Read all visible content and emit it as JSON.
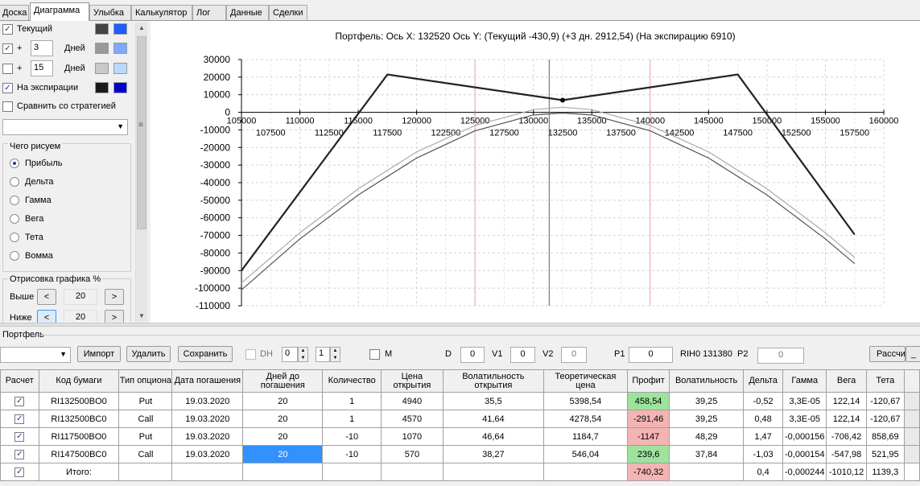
{
  "tabs": [
    {
      "label": "Доска",
      "active": false
    },
    {
      "label": "Диаграмма",
      "active": true
    },
    {
      "label": "Улыбка",
      "active": false
    },
    {
      "label": "Калькулятор",
      "active": false
    },
    {
      "label": "Лог",
      "active": false
    },
    {
      "label": "Данные",
      "active": false
    },
    {
      "label": "Сделки",
      "active": false
    }
  ],
  "left": {
    "current_label": "Текущий",
    "plus1": "+",
    "days1_value": "3",
    "days1_label": "Дней",
    "plus2": "+",
    "days2_value": "15",
    "days2_label": "Дней",
    "expiry_label": "На экспирации",
    "compare_label": "Сравнить со стратегией",
    "draw_group": "Чего рисуем",
    "radios": [
      "Прибыль",
      "Дельта",
      "Гамма",
      "Вега",
      "Тета",
      "Вомма"
    ],
    "draw_pct_group": "Отрисовка графика %",
    "above_label": "Выше",
    "above_value": "20",
    "below_label": "Ниже",
    "below_value": "20",
    "btn_left": "<",
    "btn_right": ">",
    "colors": {
      "current": [
        "#444444",
        "#1e5cff"
      ],
      "days1": [
        "#999999",
        "#7fa8ff"
      ],
      "days2": [
        "#c8c8c8",
        "#b8daff"
      ],
      "expiry": [
        "#1a1a1a",
        "#0000cc"
      ]
    }
  },
  "chart_data": {
    "type": "line",
    "title": "Портфель: Ось X: 132520 Ось Y:  (Текущий -430,9)  (+3 дн. 2912,54)  (На экспирацию 6910)",
    "xlim": [
      105000,
      160000
    ],
    "ylim": [
      -110000,
      30000
    ],
    "x_ticks_upper": [
      105000,
      110000,
      115000,
      120000,
      125000,
      130000,
      135000,
      140000,
      145000,
      150000,
      155000,
      160000
    ],
    "x_ticks_lower": [
      107500,
      112500,
      117500,
      122500,
      127500,
      132500,
      137500,
      142500,
      147500,
      152500,
      157500
    ],
    "y_ticks": [
      30000,
      20000,
      10000,
      0,
      -10000,
      -20000,
      -30000,
      -40000,
      -50000,
      -60000,
      -70000,
      -80000,
      -90000,
      -100000,
      -110000
    ],
    "vlines": [
      {
        "x": 125000,
        "color": "#f0a0b0"
      },
      {
        "x": 131350,
        "color": "#556080"
      },
      {
        "x": 140000,
        "color": "#f0a0b0"
      }
    ],
    "series": [
      {
        "style": "expiry",
        "color": "#222222",
        "points": [
          [
            105000,
            -90000
          ],
          [
            117500,
            21500
          ],
          [
            132500,
            6910
          ],
          [
            147500,
            21500
          ],
          [
            157500,
            -69500
          ]
        ]
      },
      {
        "style": "current",
        "color": "#555555",
        "points": [
          [
            105000,
            -101000
          ],
          [
            110000,
            -72000
          ],
          [
            115000,
            -47000
          ],
          [
            120000,
            -26000
          ],
          [
            125000,
            -10500
          ],
          [
            130000,
            -1500
          ],
          [
            132500,
            -431
          ],
          [
            135000,
            -1500
          ],
          [
            140000,
            -10500
          ],
          [
            145000,
            -26000
          ],
          [
            150000,
            -47000
          ],
          [
            155000,
            -72000
          ],
          [
            157500,
            -86000
          ]
        ]
      },
      {
        "style": "plus3",
        "color": "#a8a8a8",
        "points": [
          [
            105000,
            -97000
          ],
          [
            110000,
            -68500
          ],
          [
            115000,
            -43500
          ],
          [
            120000,
            -22500
          ],
          [
            125000,
            -7500
          ],
          [
            130000,
            1500
          ],
          [
            132500,
            2913
          ],
          [
            135000,
            1500
          ],
          [
            140000,
            -7500
          ],
          [
            145000,
            -22500
          ],
          [
            150000,
            -43500
          ],
          [
            155000,
            -68500
          ],
          [
            157500,
            -82500
          ]
        ]
      }
    ],
    "marker": {
      "x": 132500,
      "y": 6910
    }
  },
  "portfolio": {
    "label": "Портфель",
    "import": "Импорт",
    "delete": "Удалить",
    "save": "Сохранить",
    "dh_label": "DH",
    "dh_value1": "0",
    "dh_value2": "1",
    "m_label": "M",
    "d_label": "D",
    "d_value": "0",
    "v1_label": "V1",
    "v1_value": "0",
    "v2_label": "V2",
    "v2_value": "0",
    "p1_label": "P1",
    "p1_value": "0",
    "rih_label": "RIH0 131380",
    "p2_label": "P2",
    "p2_value": "0",
    "calc_btn": "Рассчи"
  },
  "table": {
    "headers": [
      "Расчет",
      "Код бумаги",
      "Тип опциона",
      "Дата погашения",
      "Дней до погашения",
      "Количество",
      "Цена открытия",
      "Волатильность открытия",
      "Теоретическая цена",
      "Профит",
      "Волатильность",
      "Дельта",
      "Гамма",
      "Вега",
      "Тета"
    ],
    "rows": [
      {
        "check": "✓",
        "code": "RI132500BO0",
        "type": "Put",
        "date": "19.03.2020",
        "days": "20",
        "qty": "1",
        "price": "4940",
        "vol_open": "35,5",
        "theo": "5398,54",
        "profit": "458,54",
        "profit_sign": "pos",
        "vol": "39,25",
        "delta": "-0,52",
        "gamma": "3,3E-05",
        "vega": "122,14",
        "theta": "-120,67"
      },
      {
        "check": "✓",
        "code": "RI132500BC0",
        "type": "Call",
        "date": "19.03.2020",
        "days": "20",
        "qty": "1",
        "price": "4570",
        "vol_open": "41,64",
        "theo": "4278,54",
        "profit": "-291,46",
        "profit_sign": "neg",
        "vol": "39,25",
        "delta": "0,48",
        "gamma": "3,3E-05",
        "vega": "122,14",
        "theta": "-120,67"
      },
      {
        "check": "✓",
        "code": "RI117500BO0",
        "type": "Put",
        "date": "19.03.2020",
        "days": "20",
        "qty": "-10",
        "price": "1070",
        "vol_open": "46,64",
        "theo": "1184,7",
        "profit": "-1147",
        "profit_sign": "neg",
        "vol": "48,29",
        "delta": "1,47",
        "gamma": "-0,000156",
        "vega": "-706,42",
        "theta": "858,69"
      },
      {
        "check": "✓",
        "code": "RI147500BC0",
        "type": "Call",
        "date": "19.03.2020",
        "days": "20",
        "qty": "-10",
        "price": "570",
        "vol_open": "38,27",
        "theo": "546,04",
        "profit": "239,6",
        "profit_sign": "pos",
        "vol": "37,84",
        "delta": "-1,03",
        "gamma": "-0,000154",
        "vega": "-547,98",
        "theta": "521,95",
        "days_selected": true
      }
    ],
    "total": {
      "check": "✓",
      "label": "Итого:",
      "profit": "-740,32",
      "delta": "0,4",
      "gamma": "-0,000244",
      "vega": "-1010,12",
      "theta": "1139,3"
    }
  }
}
